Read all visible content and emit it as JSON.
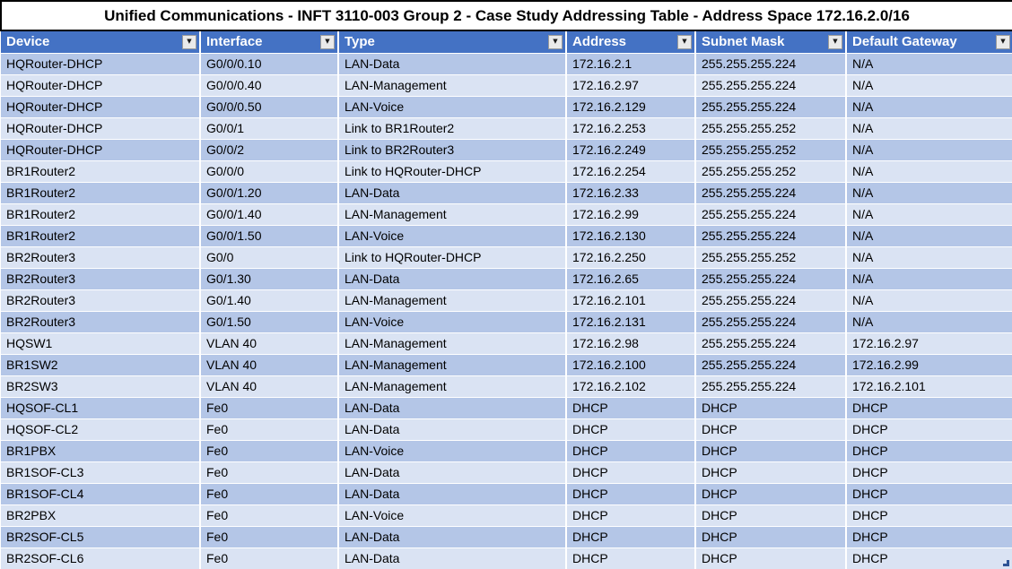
{
  "title": "Unified Communications - INFT 3110-003 Group 2 - Case Study Addressing Table - Address Space 172.16.2.0/16",
  "table": {
    "filter_icon": "▼",
    "columns": [
      {
        "label": "Device"
      },
      {
        "label": "Interface"
      },
      {
        "label": "Type"
      },
      {
        "label": "Address"
      },
      {
        "label": "Subnet Mask"
      },
      {
        "label": "Default Gateway"
      }
    ],
    "rows": [
      [
        "HQRouter-DHCP",
        "G0/0/0.10",
        "LAN-Data",
        "172.16.2.1",
        "255.255.255.224",
        "N/A"
      ],
      [
        "HQRouter-DHCP",
        "G0/0/0.40",
        "LAN-Management",
        "172.16.2.97",
        "255.255.255.224",
        "N/A"
      ],
      [
        "HQRouter-DHCP",
        "G0/0/0.50",
        "LAN-Voice",
        "172.16.2.129",
        "255.255.255.224",
        "N/A"
      ],
      [
        "HQRouter-DHCP",
        "G0/0/1",
        "Link to BR1Router2",
        "172.16.2.253",
        "255.255.255.252",
        "N/A"
      ],
      [
        "HQRouter-DHCP",
        "G0/0/2",
        "Link to BR2Router3",
        "172.16.2.249",
        "255.255.255.252",
        "N/A"
      ],
      [
        "BR1Router2",
        "G0/0/0",
        "Link to HQRouter-DHCP",
        "172.16.2.254",
        "255.255.255.252",
        "N/A"
      ],
      [
        "BR1Router2",
        "G0/0/1.20",
        "LAN-Data",
        "172.16.2.33",
        "255.255.255.224",
        "N/A"
      ],
      [
        "BR1Router2",
        "G0/0/1.40",
        "LAN-Management",
        "172.16.2.99",
        "255.255.255.224",
        "N/A"
      ],
      [
        "BR1Router2",
        "G0/0/1.50",
        "LAN-Voice",
        "172.16.2.130",
        "255.255.255.224",
        "N/A"
      ],
      [
        "BR2Router3",
        "G0/0",
        "Link to HQRouter-DHCP",
        "172.16.2.250",
        "255.255.255.252",
        "N/A"
      ],
      [
        "BR2Router3",
        "G0/1.30",
        "LAN-Data",
        "172.16.2.65",
        "255.255.255.224",
        "N/A"
      ],
      [
        "BR2Router3",
        "G0/1.40",
        "LAN-Management",
        "172.16.2.101",
        "255.255.255.224",
        "N/A"
      ],
      [
        "BR2Router3",
        "G0/1.50",
        "LAN-Voice",
        "172.16.2.131",
        "255.255.255.224",
        "N/A"
      ],
      [
        "HQSW1",
        "VLAN 40",
        "LAN-Management",
        "172.16.2.98",
        "255.255.255.224",
        "172.16.2.97"
      ],
      [
        "BR1SW2",
        "VLAN 40",
        "LAN-Management",
        "172.16.2.100",
        "255.255.255.224",
        "172.16.2.99"
      ],
      [
        "BR2SW3",
        "VLAN 40",
        "LAN-Management",
        "172.16.2.102",
        "255.255.255.224",
        "172.16.2.101"
      ],
      [
        "HQSOF-CL1",
        "Fe0",
        "LAN-Data",
        "DHCP",
        "DHCP",
        "DHCP"
      ],
      [
        "HQSOF-CL2",
        "Fe0",
        "LAN-Data",
        "DHCP",
        "DHCP",
        "DHCP"
      ],
      [
        "BR1PBX",
        "Fe0",
        "LAN-Voice",
        "DHCP",
        "DHCP",
        "DHCP"
      ],
      [
        "BR1SOF-CL3",
        "Fe0",
        "LAN-Data",
        "DHCP",
        "DHCP",
        "DHCP"
      ],
      [
        "BR1SOF-CL4",
        "Fe0",
        "LAN-Data",
        "DHCP",
        "DHCP",
        "DHCP"
      ],
      [
        "BR2PBX",
        "Fe0",
        "LAN-Voice",
        "DHCP",
        "DHCP",
        "DHCP"
      ],
      [
        "BR2SOF-CL5",
        "Fe0",
        "LAN-Data",
        "DHCP",
        "DHCP",
        "DHCP"
      ],
      [
        "BR2SOF-CL6",
        "Fe0",
        "LAN-Data",
        "DHCP",
        "DHCP",
        "DHCP"
      ]
    ]
  },
  "colors": {
    "header_bg": "#4472C4",
    "band_dark": "#B4C6E7",
    "band_light": "#DAE3F3",
    "header_text": "#FFFFFF",
    "body_text": "#000000",
    "grid": "#FFFFFF",
    "resize_handle": "#2E5395"
  }
}
